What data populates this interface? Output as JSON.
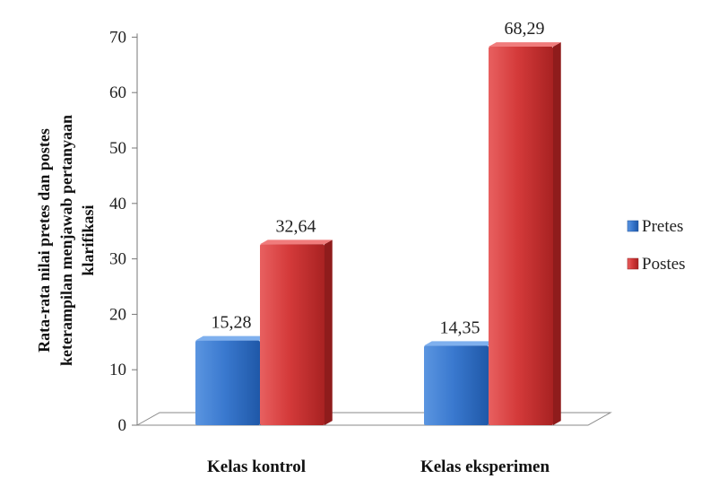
{
  "chart_data": {
    "type": "bar",
    "categories": [
      "Kelas kontrol",
      "Kelas eksperimen"
    ],
    "series": [
      {
        "name": "Pretes",
        "values": [
          15.28,
          14.35
        ],
        "labels": [
          "15,28",
          "14,35"
        ],
        "color": "#2f6fc5"
      },
      {
        "name": "Postes",
        "values": [
          32.64,
          68.29
        ],
        "labels": [
          "32,64",
          "68,29"
        ],
        "color": "#d03434"
      }
    ],
    "ylabel_lines": [
      "Rata-rata nilai pretes dan postes",
      "keterampilan menjawab pertanyaan",
      "klarifikasi"
    ],
    "ylim": [
      0,
      70
    ],
    "yticks": [
      0,
      10,
      20,
      30,
      40,
      50,
      60,
      70
    ],
    "legend_position": "right",
    "grid": false
  }
}
